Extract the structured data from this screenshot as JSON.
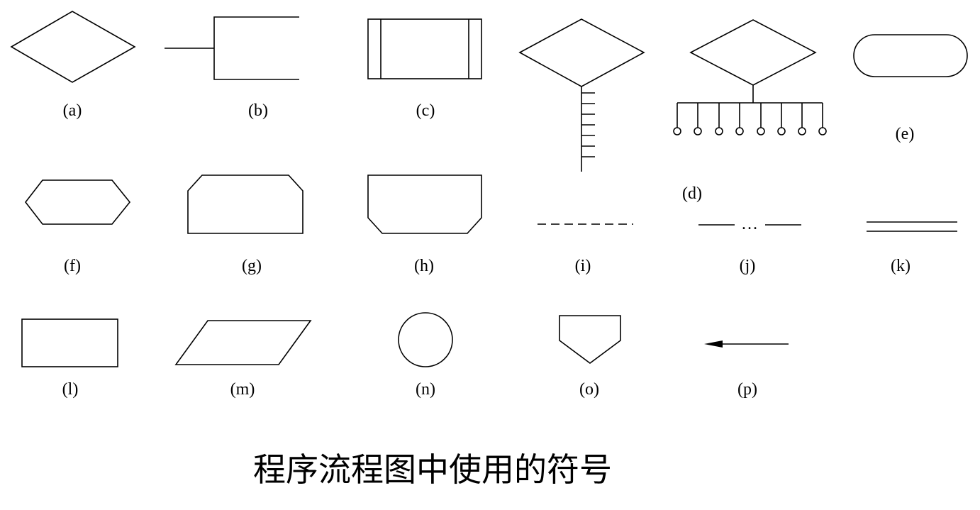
{
  "labels": {
    "a": "(a)",
    "b": "(b)",
    "c": "(c)",
    "d": "(d)",
    "e": "(e)",
    "f": "(f)",
    "g": "(g)",
    "h": "(h)",
    "i": "(i)",
    "j": "(j)",
    "k": "(k)",
    "l": "(l)",
    "m": "(m)",
    "n": "(n)",
    "o": "(o)",
    "p": "(p)"
  },
  "symbol_j_text": "…",
  "caption": "程序流程图中使用的符号"
}
